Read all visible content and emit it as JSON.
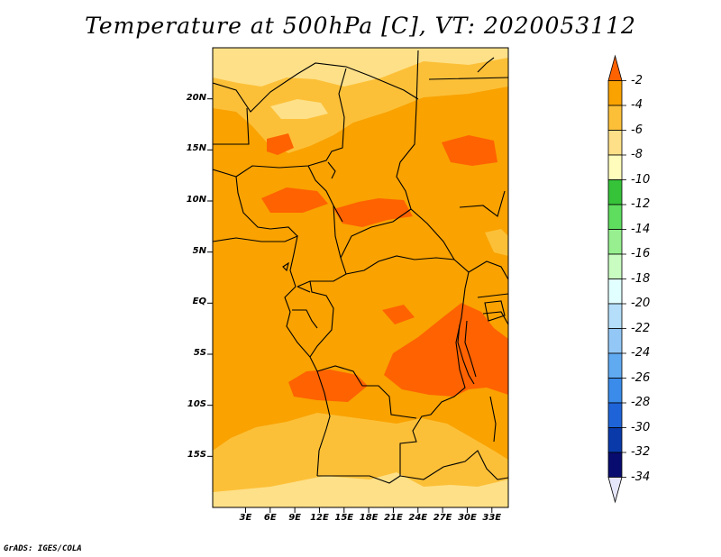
{
  "title": "Temperature at 500hPa [C], VT: 2020053112",
  "credit": "GrADS: IGES/COLA",
  "map": {
    "lon_range": [
      -1,
      35
    ],
    "lat_range": [
      -20,
      25
    ],
    "lat_labels": [
      "20N",
      "15N",
      "10N",
      "5N",
      "EQ",
      "5S",
      "10S",
      "15S"
    ],
    "lon_labels": [
      "3E",
      "6E",
      "9E",
      "12E",
      "15E",
      "18E",
      "21E",
      "24E",
      "27E",
      "30E",
      "33E"
    ],
    "background_color": "#f9a200",
    "shading": [
      {
        "level": "-4 to -2",
        "color": "#ff6200"
      },
      {
        "level": "-6 to -4",
        "color": "#f9a200"
      },
      {
        "level": "-8 to -6",
        "color": "#fcc038"
      },
      {
        "level": "-10 to -8",
        "color": "#fee088"
      }
    ]
  },
  "colorbar": {
    "labels": [
      "-2",
      "-4",
      "-6",
      "-8",
      "-10",
      "-12",
      "-14",
      "-16",
      "-18",
      "-20",
      "-22",
      "-24",
      "-26",
      "-28",
      "-30",
      "-32",
      "-34"
    ],
    "colors": [
      "#ff6200",
      "#f9a200",
      "#fcc038",
      "#fee088",
      "#fffcbc",
      "#36c33a",
      "#5edd5e",
      "#97ef8f",
      "#c9fcc0",
      "#e1ffff",
      "#b4defa",
      "#93c8f6",
      "#60aaf2",
      "#3a8bea",
      "#1e64d8",
      "#0a3aaa",
      "#080c6e",
      "#e6e6fa"
    ]
  }
}
